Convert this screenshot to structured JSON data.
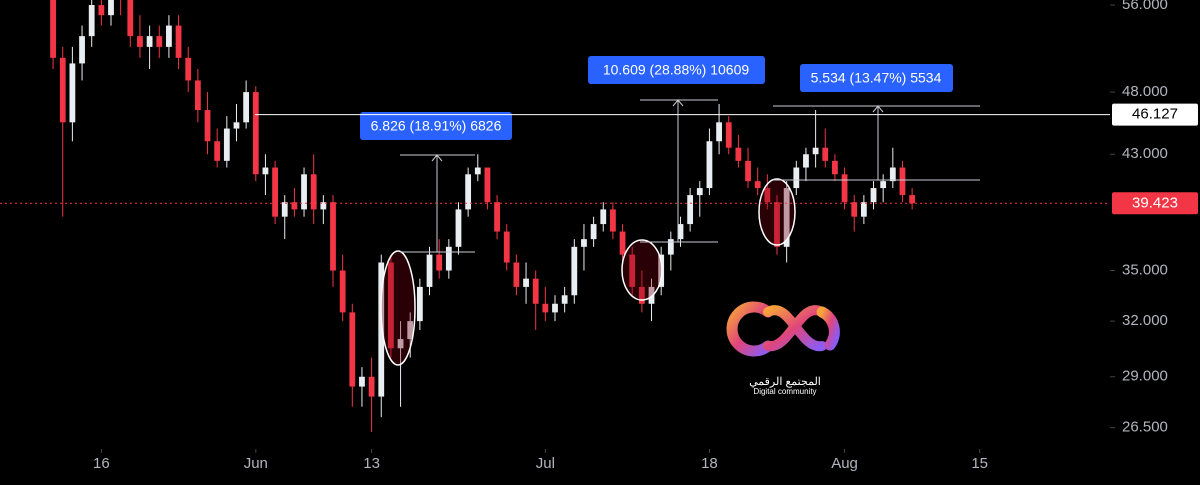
{
  "chart_data": {
    "type": "candlestick",
    "open": [
      56.8,
      51,
      45.5,
      50.5,
      53,
      56,
      55,
      57,
      56.5,
      53,
      52,
      53,
      52,
      54,
      51,
      49,
      46.5,
      44,
      42.5,
      45,
      45.5,
      48,
      41.5,
      42,
      38.5,
      39.5,
      39,
      41.5,
      39,
      39.5,
      35,
      32.5,
      28.5,
      29,
      28,
      35.5,
      30.5,
      31,
      32,
      34,
      36,
      35,
      36.5,
      39,
      41.5,
      42,
      39.5,
      37.5,
      35.5,
      34,
      34.5,
      33,
      32.5,
      33,
      33.5,
      36.5,
      37,
      38,
      39,
      37.5,
      36,
      34,
      33,
      34,
      36,
      37,
      38,
      40,
      40.5,
      44,
      45.5,
      43.5,
      42.5,
      41,
      40.5,
      39.5,
      36.5,
      40.5,
      42,
      43,
      43.5,
      42.5,
      41.5,
      39.5,
      38.5,
      39.5,
      40.5,
      41,
      42,
      40
    ],
    "high": [
      57,
      52,
      52,
      54,
      57,
      58,
      58,
      58,
      57,
      55,
      54,
      54,
      55,
      55,
      52,
      50,
      48,
      45,
      46,
      47,
      49,
      48.5,
      43,
      42.5,
      40,
      40.5,
      42,
      43,
      40,
      40,
      36,
      33,
      29.5,
      30,
      36,
      36,
      32,
      32.5,
      34.5,
      36.5,
      37,
      37,
      39.5,
      42,
      43,
      42,
      40,
      38,
      36,
      35.5,
      35,
      34,
      33.5,
      34,
      37,
      38,
      38.5,
      39.5,
      39.5,
      38,
      36.5,
      35,
      34.5,
      36.5,
      37.5,
      38.5,
      40.5,
      41,
      45,
      47,
      46,
      44.5,
      43.5,
      42,
      41.5,
      40,
      41,
      42.5,
      43.5,
      46.5,
      45,
      43,
      42,
      40,
      40,
      41,
      41.5,
      43.5,
      42.5,
      40.5
    ],
    "low": [
      50,
      38.5,
      44,
      49,
      52,
      54,
      54,
      55,
      52,
      51,
      50,
      51,
      51,
      50,
      48,
      45.5,
      43,
      42,
      42,
      44,
      45,
      41,
      40,
      38,
      37,
      38.5,
      38.5,
      38,
      38,
      34,
      32,
      27.5,
      27.5,
      26.3,
      27,
      30,
      27.5,
      30,
      31.5,
      33.5,
      34.5,
      34.5,
      36,
      38.5,
      41,
      39,
      37,
      35,
      33.5,
      33,
      31.5,
      32,
      32,
      32.5,
      33,
      35,
      36.5,
      37.5,
      37,
      35.5,
      33.5,
      32.5,
      32,
      33.5,
      35,
      36.5,
      37.5,
      38.5,
      40,
      43,
      43,
      42,
      40.5,
      40,
      39,
      36,
      35.5,
      40,
      41,
      42,
      42,
      41,
      39,
      37.5,
      38,
      39,
      39.5,
      40.5,
      39.5,
      39
    ],
    "close": [
      51,
      45.5,
      50.5,
      53,
      56,
      55,
      57,
      56.5,
      53,
      52,
      53,
      52,
      54,
      51,
      49,
      46.5,
      44,
      42.5,
      45,
      45.5,
      48,
      41.5,
      42,
      38.5,
      39.5,
      39,
      41.5,
      39,
      39.5,
      35,
      32.5,
      28.5,
      29,
      28,
      35.5,
      30.5,
      31,
      32,
      34,
      36,
      35,
      36.5,
      39,
      41.5,
      42,
      39.5,
      37.5,
      35.5,
      34,
      34.5,
      33,
      32.5,
      33,
      33.5,
      36.5,
      37,
      38,
      39,
      37.5,
      36,
      34,
      33,
      34,
      36,
      37,
      38,
      40,
      40.5,
      44,
      45.5,
      43.5,
      42.5,
      41,
      40.5,
      39.5,
      36.5,
      40.5,
      42,
      43,
      43.5,
      42.5,
      41.5,
      39.5,
      38.5,
      39.5,
      40.5,
      41,
      42,
      40,
      39.423
    ],
    "up_color": "#e9eef2",
    "down_color": "#f23645",
    "log_scale": true,
    "ylim": [
      25.7,
      56.5
    ],
    "yticks": [
      {
        "value": 26.5,
        "label": "26.500"
      },
      {
        "value": 29,
        "label": "29.000"
      },
      {
        "value": 32,
        "label": "32.000"
      },
      {
        "value": 35,
        "label": "35.000"
      },
      {
        "value": 43,
        "label": "43.000"
      },
      {
        "value": 48,
        "label": "48.000"
      },
      {
        "value": 56,
        "label": "56.000"
      }
    ],
    "xlim": [
      -5.5,
      109.5
    ],
    "xticks": [
      {
        "value": 5,
        "label": "16"
      },
      {
        "value": 21,
        "label": "Jun"
      },
      {
        "value": 33,
        "label": "13"
      },
      {
        "value": 51,
        "label": "Jul"
      },
      {
        "value": 68,
        "label": "18"
      },
      {
        "value": 82,
        "label": "Aug"
      },
      {
        "value": 96,
        "label": "15"
      }
    ],
    "price_lines": [
      46.127,
      39.423
    ],
    "price_line_colors": [
      "#ffffff",
      "#f23645"
    ],
    "measurements": [
      "6.826 (18.91%) 6826",
      "10.609 (28.88%) 10609",
      "5.534 (13.47%) 5534"
    ],
    "watermark": {
      "arabic": "المجتمع الرقمي",
      "english": "Digital community"
    }
  }
}
